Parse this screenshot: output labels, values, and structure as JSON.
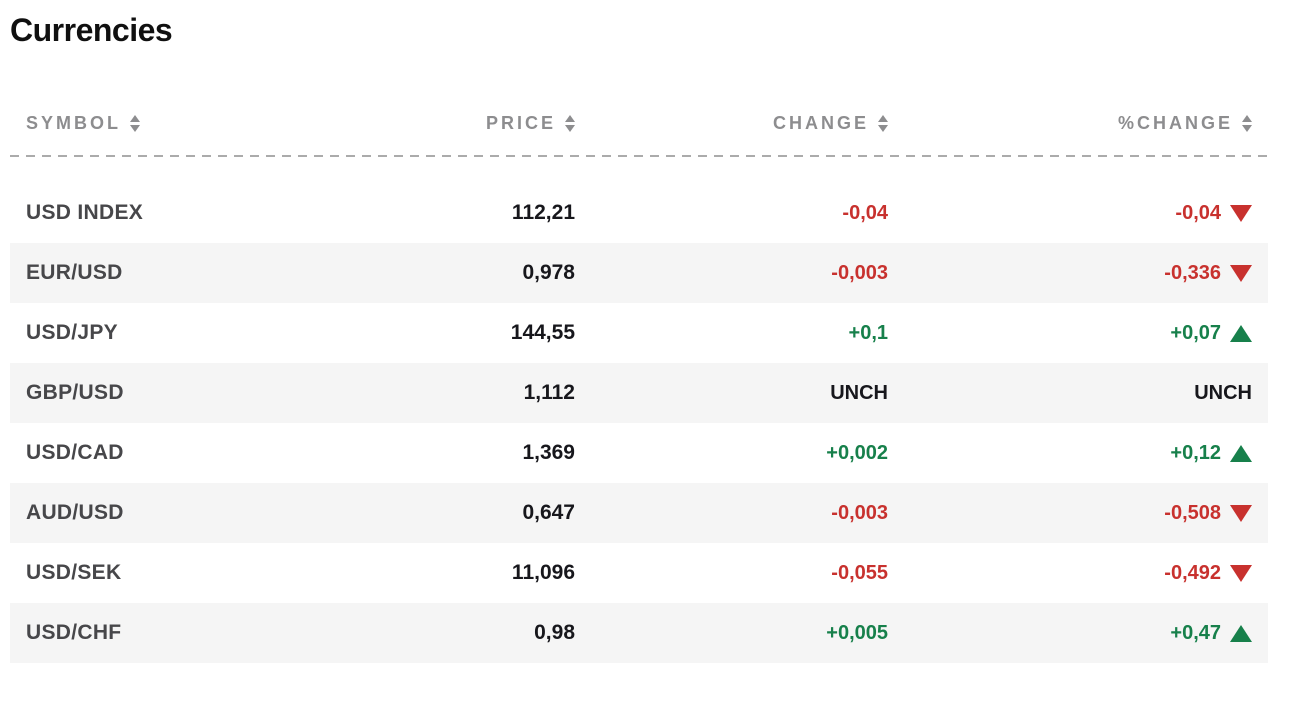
{
  "page": {
    "title": "Currencies"
  },
  "colors": {
    "positive": "#17804b",
    "negative": "#c8312e",
    "neutral_text": "#17171c",
    "symbol_text": "#47474a",
    "header_text": "#8d8d8f",
    "row_alt_bg": "#f5f5f5"
  },
  "table": {
    "headers": [
      {
        "label": "SYMBOL"
      },
      {
        "label": "PRICE"
      },
      {
        "label": "CHANGE"
      },
      {
        "label": "%CHANGE"
      }
    ],
    "sort_icon": "sort-up-down-arrows",
    "rows": [
      {
        "symbol": "USD INDEX",
        "price": "112,21",
        "change": "-0,04",
        "change_trend": "down",
        "pct_change": "-0,04",
        "pct_trend": "down"
      },
      {
        "symbol": "EUR/USD",
        "price": "0,978",
        "change": "-0,003",
        "change_trend": "down",
        "pct_change": "-0,336",
        "pct_trend": "down"
      },
      {
        "symbol": "USD/JPY",
        "price": "144,55",
        "change": "+0,1",
        "change_trend": "up",
        "pct_change": "+0,07",
        "pct_trend": "up"
      },
      {
        "symbol": "GBP/USD",
        "price": "1,112",
        "change": "UNCH",
        "change_trend": "unch",
        "pct_change": "UNCH",
        "pct_trend": "unch"
      },
      {
        "symbol": "USD/CAD",
        "price": "1,369",
        "change": "+0,002",
        "change_trend": "up",
        "pct_change": "+0,12",
        "pct_trend": "up"
      },
      {
        "symbol": "AUD/USD",
        "price": "0,647",
        "change": "-0,003",
        "change_trend": "down",
        "pct_change": "-0,508",
        "pct_trend": "down"
      },
      {
        "symbol": "USD/SEK",
        "price": "11,096",
        "change": "-0,055",
        "change_trend": "down",
        "pct_change": "-0,492",
        "pct_trend": "down"
      },
      {
        "symbol": "USD/CHF",
        "price": "0,98",
        "change": "+0,005",
        "change_trend": "up",
        "pct_change": "+0,47",
        "pct_trend": "up"
      }
    ]
  }
}
